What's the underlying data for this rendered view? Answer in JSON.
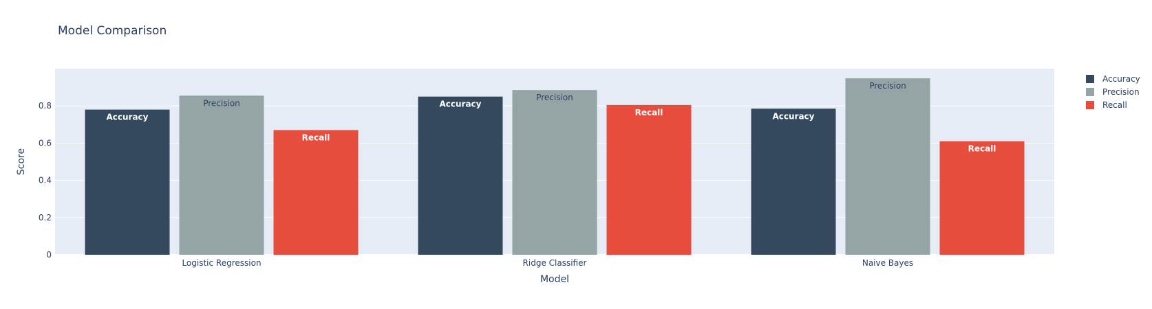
{
  "chart_data": {
    "type": "bar",
    "title": "Model Comparison",
    "xlabel": "Model",
    "ylabel": "Score",
    "categories": [
      "Logistic Regression",
      "Ridge Classifier",
      "Naive Bayes"
    ],
    "series": [
      {
        "name": "Accuracy",
        "color": "#34495e",
        "label_color": "#ffffff",
        "values": [
          0.78,
          0.85,
          0.785
        ]
      },
      {
        "name": "Precision",
        "color": "#95a5a6",
        "label_color": "#2a3f5f",
        "values": [
          0.855,
          0.885,
          0.948
        ]
      },
      {
        "name": "Recall",
        "color": "#e74c3c",
        "label_color": "#ffffff",
        "values": [
          0.67,
          0.805,
          0.61
        ]
      }
    ],
    "ylim": [
      0,
      1
    ],
    "yticks": [
      0,
      0.2,
      0.4,
      0.6,
      0.8
    ],
    "ytick_labels": [
      "0",
      "0.2",
      "0.4",
      "0.6",
      "0.8"
    ],
    "grid": true,
    "legend_position": "top-right",
    "plot_background": "#e5ecf6"
  }
}
